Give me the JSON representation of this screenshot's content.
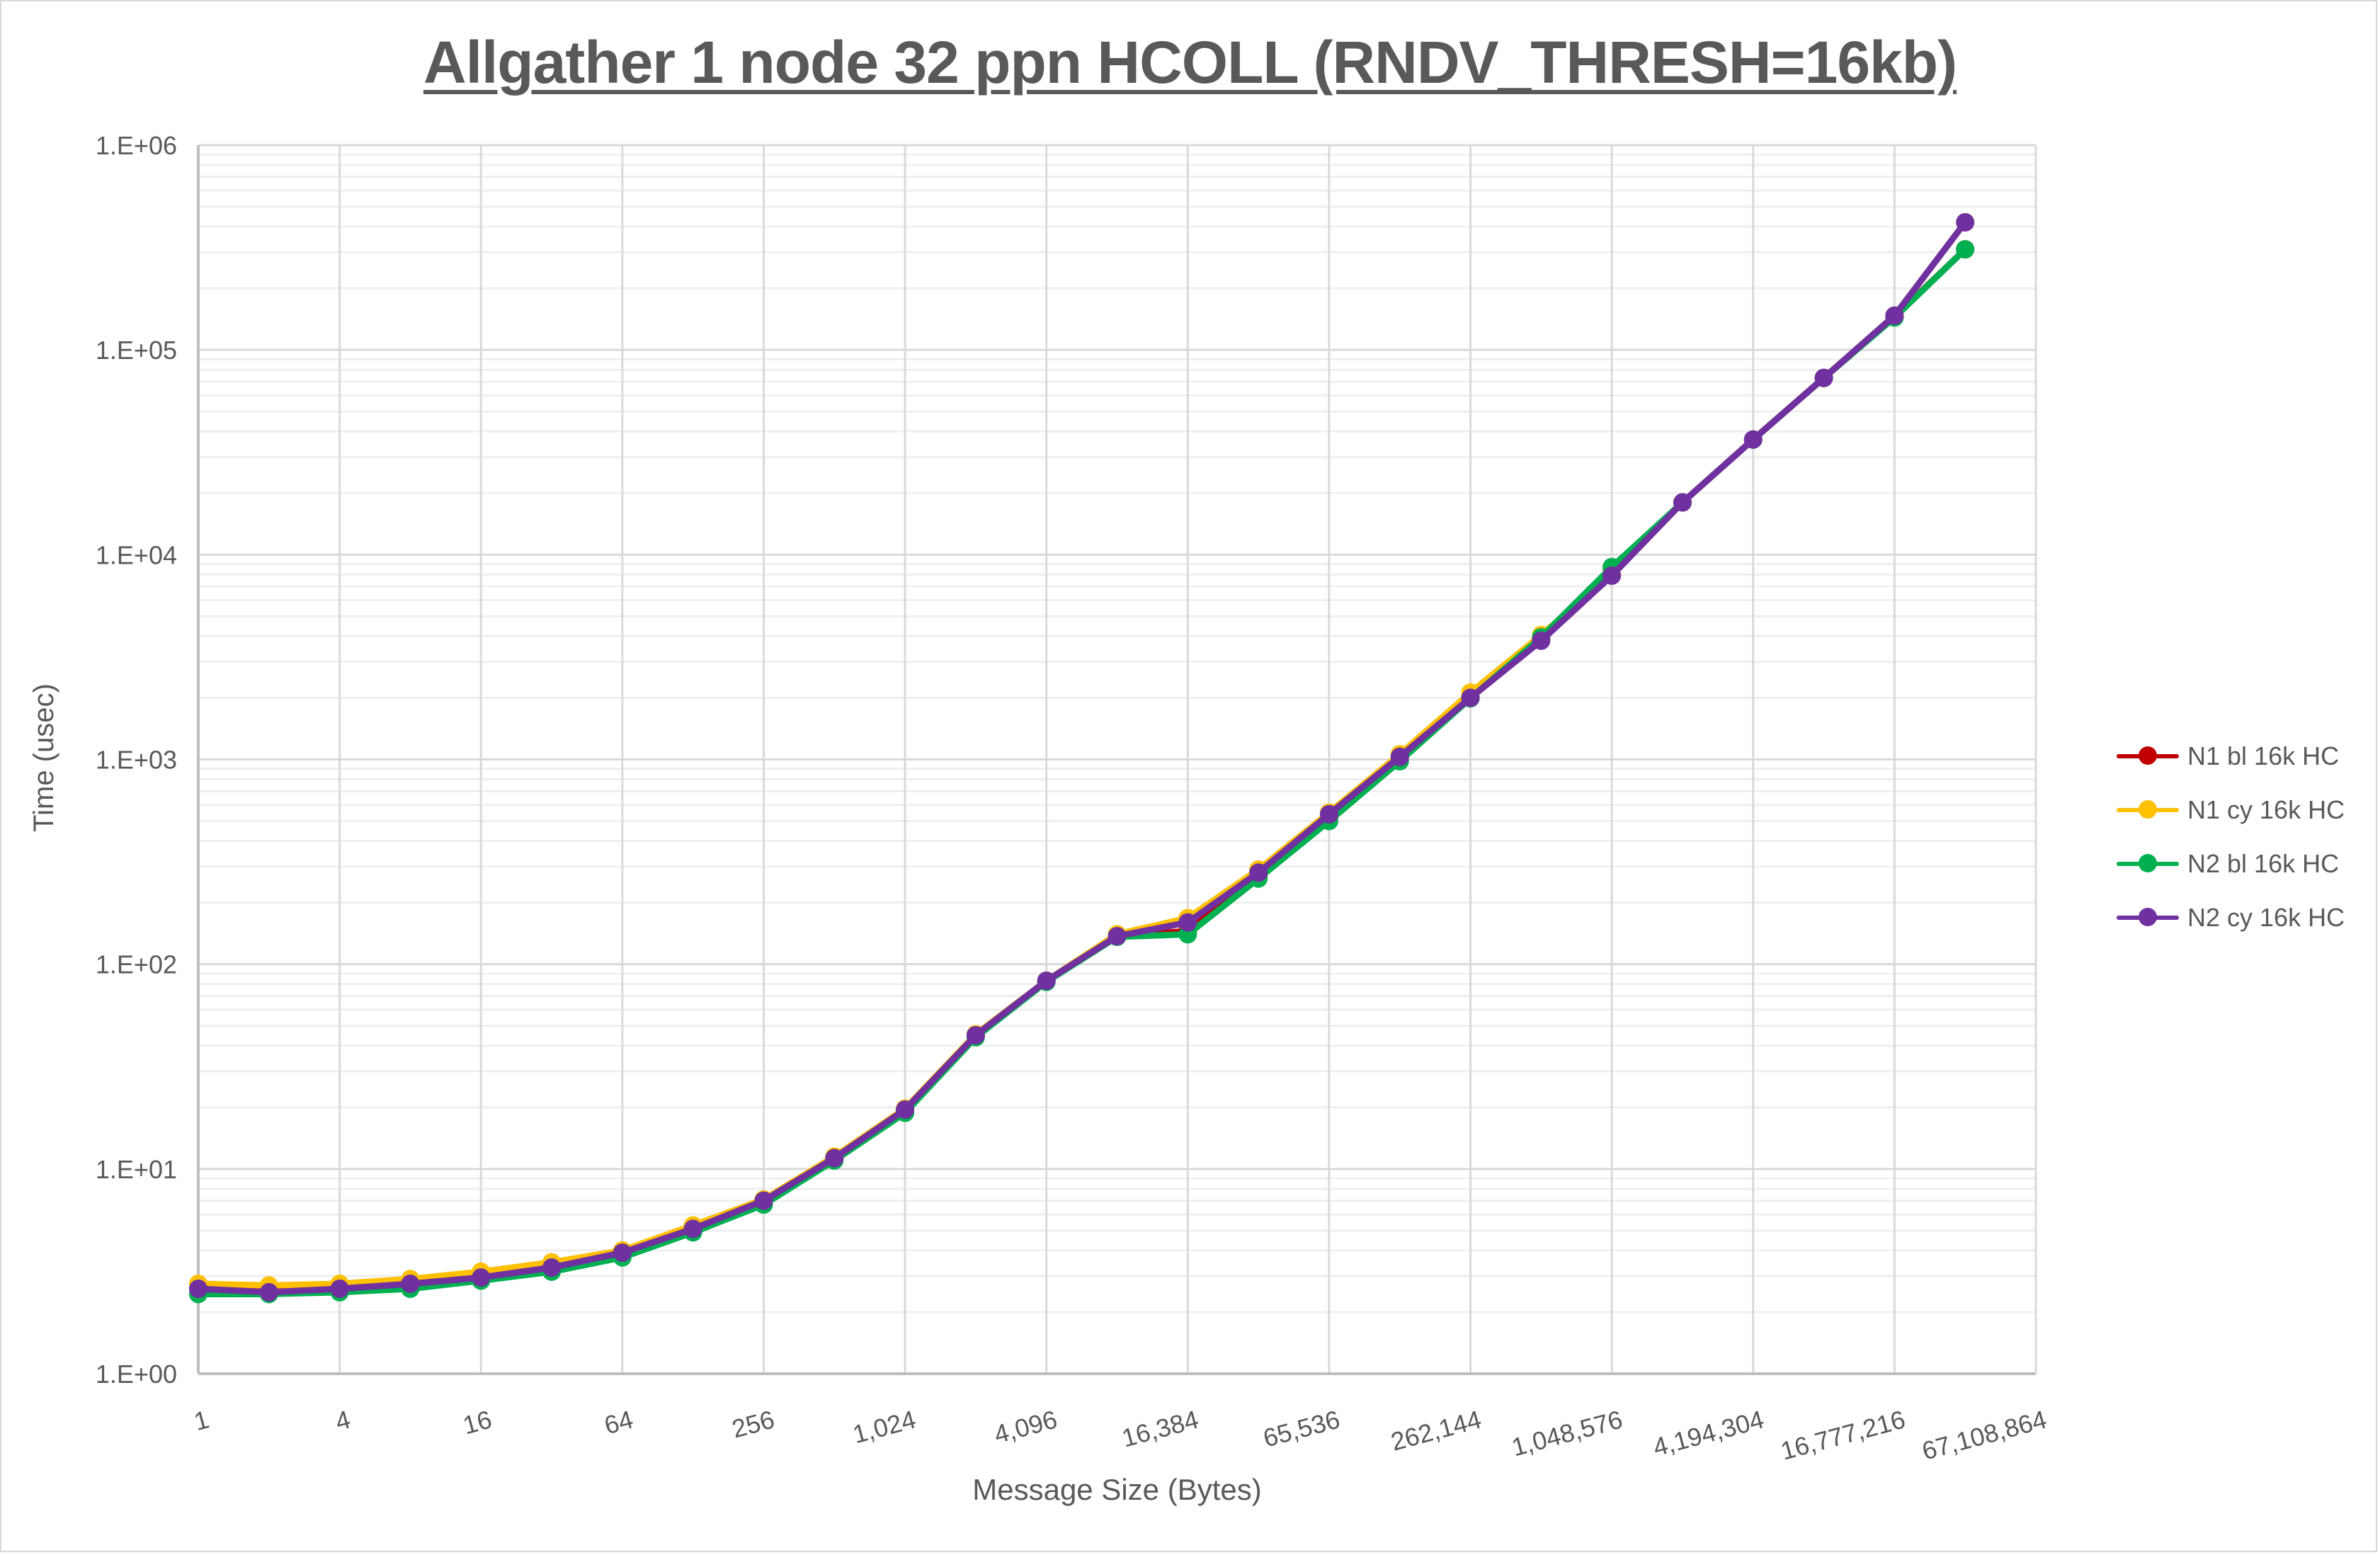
{
  "chart_data": {
    "type": "line",
    "title": "Allgather 1 node 32 ppn HCOLL (RNDV_THRESH=16kb)",
    "xlabel": "Message Size (Bytes)",
    "ylabel": "Time (usec)",
    "x_scale": "log2",
    "y_scale": "log10",
    "ylim": [
      1,
      1000000
    ],
    "y_ticks": [
      "1.E+00",
      "1.E+01",
      "1.E+02",
      "1.E+03",
      "1.E+04",
      "1.E+05",
      "1.E+06"
    ],
    "x_tick_labels": [
      "1",
      "4",
      "16",
      "64",
      "256",
      "1,024",
      "4,096",
      "16,384",
      "65,536",
      "262,144",
      "1,048,576",
      "4,194,304",
      "16,777,216",
      "67,108,864"
    ],
    "grid": true,
    "legend_position": "right",
    "x": [
      1,
      2,
      4,
      8,
      16,
      32,
      64,
      128,
      256,
      512,
      1024,
      2048,
      4096,
      8192,
      16384,
      32768,
      65536,
      131072,
      262144,
      524288,
      1048576,
      2097152,
      4194304,
      8388608,
      16777216,
      33554432
    ],
    "series": [
      {
        "name": "N1 bl 16k HC",
        "color": "#c00000",
        "values": [
          2.6,
          2.55,
          2.6,
          2.75,
          2.95,
          3.3,
          3.85,
          5.1,
          6.9,
          11.2,
          19.3,
          45,
          83,
          137,
          145,
          270,
          520,
          1010,
          2000,
          3900,
          8600,
          18000,
          36500,
          73000,
          145000,
          310000
        ]
      },
      {
        "name": "N1 cy 16k HC",
        "color": "#ffc000",
        "values": [
          2.75,
          2.7,
          2.75,
          2.9,
          3.15,
          3.5,
          4.0,
          5.3,
          7.1,
          11.5,
          19.7,
          45.5,
          83,
          140,
          168,
          290,
          550,
          1060,
          2120,
          4050,
          8000,
          18000,
          36500,
          73000,
          147000,
          420000
        ]
      },
      {
        "name": "N2 bl 16k HC",
        "color": "#00b050",
        "values": [
          2.45,
          2.45,
          2.5,
          2.6,
          2.85,
          3.15,
          3.7,
          4.9,
          6.7,
          11.0,
          18.8,
          44,
          82,
          136,
          140,
          262,
          500,
          980,
          1990,
          3950,
          8700,
          18000,
          36500,
          73000,
          144000,
          310000
        ]
      },
      {
        "name": "N2 cy 16k HC",
        "color": "#7030a0",
        "values": [
          2.6,
          2.5,
          2.6,
          2.75,
          2.95,
          3.3,
          3.9,
          5.1,
          7.0,
          11.3,
          19.5,
          45,
          83,
          137,
          160,
          280,
          540,
          1030,
          2000,
          3800,
          7900,
          18000,
          36500,
          73000,
          147000,
          420000
        ]
      }
    ]
  },
  "legend": {
    "items": [
      {
        "label": "N1 bl 16k HC",
        "color": "#c00000"
      },
      {
        "label": "N1 cy 16k HC",
        "color": "#ffc000"
      },
      {
        "label": "N2 bl 16k HC",
        "color": "#00b050"
      },
      {
        "label": "N2 cy 16k HC",
        "color": "#7030a0"
      }
    ]
  }
}
